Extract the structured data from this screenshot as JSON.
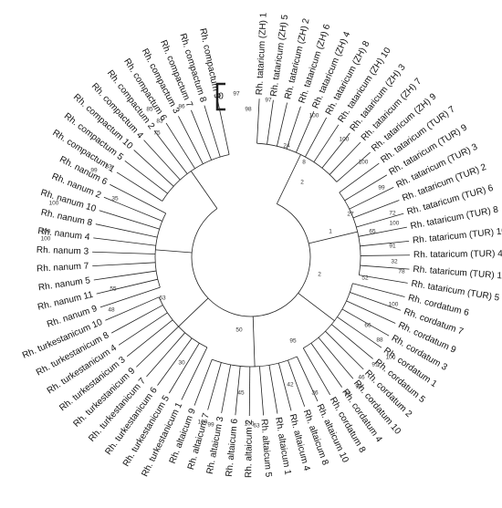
{
  "scale_label": "0",
  "leaves": [
    "Rh. tataricum (ZH) 1",
    "Rh. tataricum (ZH) 5",
    "Rh. tataricum (ZH) 2",
    "Rh. tataricum (ZH) 6",
    "Rh. tataricum (ZH) 4",
    "Rh. tataricum (ZH) 8",
    "Rh. tataricum (ZH) 10",
    "Rh. tataricum (ZH) 3",
    "Rh. tataricum (ZH) 7",
    "Rh. tataricum (ZH) 9",
    "Rh. tataricum (TUR) 7",
    "Rh. tataricum (TUR) 9",
    "Rh. tataricum (TUR) 3",
    "Rh. tataricum (TUR) 2",
    "Rh. tataricum (TUR) 6",
    "Rh. tataricum (TUR) 8",
    "Rh. tataricum (TUR) 10",
    "Rh. tataricum (TUR) 4",
    "Rh. tataricum (TUR) 1",
    "Rh. tataricum (TUR) 5",
    "Rh. cordatum 6",
    "Rh. cordatum 7",
    "Rh. cordatum 9",
    "Rh. cordatum 3",
    "Rh. cordatum 1",
    "Rh. cordatum 5",
    "Rh. cordatum 2",
    "Rh. cordatum 10",
    "Rh. cordatum 4",
    "Rh. cordatum 8",
    "Rh. altaicum 10",
    "Rh. altaicum 8",
    "Rh. altaicum 4",
    "Rh. altaicum 1",
    "Rh. altaicum 5",
    "Rh. altaicum 2",
    "Rh. altaicum 6",
    "Rh. altaicum 3",
    "Rh. altaicum 7",
    "Rh. altaicum 9",
    "Rh. turkestanicum 1",
    "Rh. turkestanicum 5",
    "Rh. turkestanicum 6",
    "Rh. turkestanicum 7",
    "Rh. turkestanicum 9",
    "Rh. turkestanicum 3",
    "Rh. turkestanicum 4",
    "Rh. turkestanicum 8",
    "Rh. turkestanicum 10",
    "Rh. nanum 9",
    "Rh. nanum 11",
    "Rh. nanum 5",
    "Rh. nanum 7",
    "Rh. nanum 3",
    "Rh. nanum 4",
    "Rh. nanum 8",
    "Rh. nanum 10",
    "Rh. nanum 2",
    "Rh. nanum 6",
    "Rh. compactum 1",
    "Rh. compactum 5",
    "Rh. compactum 10",
    "Rh. compactum 4",
    "Rh. compactum 2",
    "Rh. compactum 6",
    "Rh. compactum 3",
    "Rh. compactum 7",
    "Rh. compactum 8",
    "Rh. compactum 9"
  ],
  "bootstrap": [
    97,
    98,
    97,
    100,
    100,
    24,
    8,
    2,
    100,
    99,
    27,
    72,
    100,
    65,
    1,
    91,
    32,
    78,
    52,
    2,
    100,
    66,
    88,
    100,
    91,
    46,
    98,
    92,
    36,
    42,
    45,
    100,
    99,
    100,
    63,
    50,
    95,
    30,
    63,
    48,
    55,
    100,
    100,
    100,
    35,
    83,
    99,
    75,
    85,
    83,
    86
  ]
}
